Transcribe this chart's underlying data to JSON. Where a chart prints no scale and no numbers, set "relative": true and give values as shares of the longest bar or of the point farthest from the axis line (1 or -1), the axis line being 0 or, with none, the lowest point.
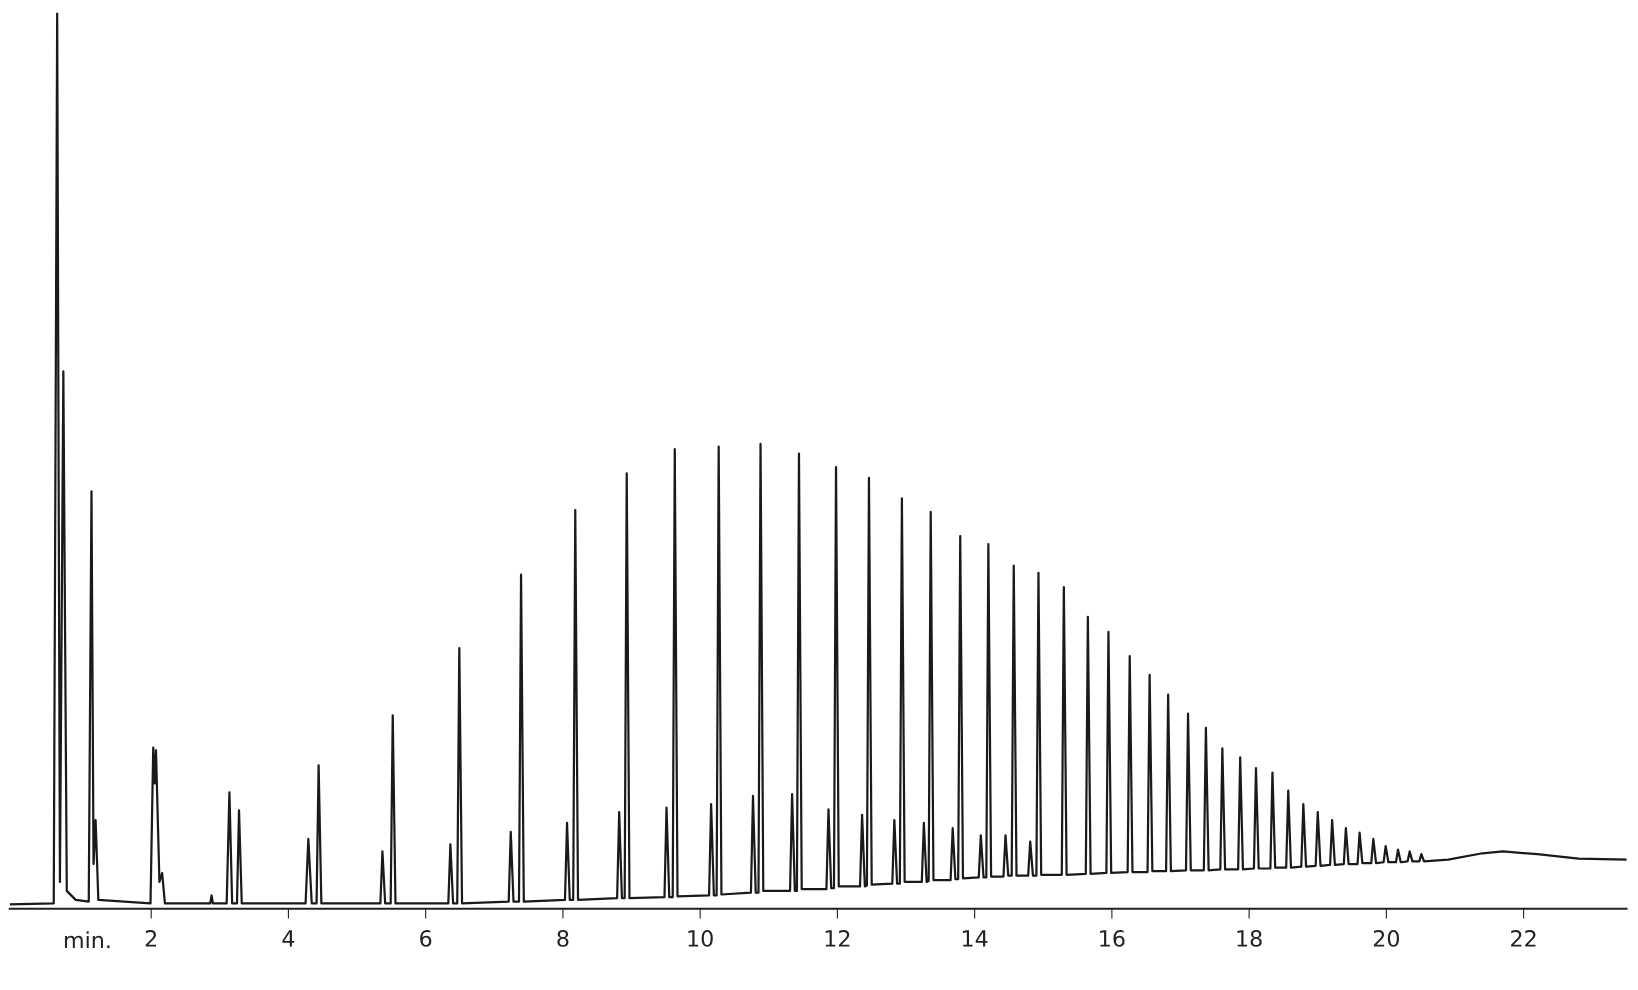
{
  "chart_data": {
    "type": "line",
    "relative": true,
    "xlabel": "min.",
    "xlim": [
      -0.06,
      23.5
    ],
    "xticks": [
      2,
      4,
      6,
      8,
      10,
      12,
      14,
      16,
      18,
      20,
      22
    ],
    "x": [
      -0.06,
      0.58,
      0.63,
      0.67,
      0.72,
      0.77,
      0.9,
      1.09,
      1.13,
      1.16,
      1.19,
      1.23,
      1.99,
      2.03,
      2.05,
      2.07,
      2.12,
      2.16,
      2.2,
      2.86,
      2.88,
      2.9,
      3.1,
      3.14,
      3.18,
      3.25,
      3.28,
      3.32,
      4.25,
      4.29,
      4.34,
      4.41,
      4.44,
      4.48,
      5.34,
      5.37,
      5.41,
      5.49,
      5.52,
      5.56,
      6.33,
      6.36,
      6.4,
      6.46,
      6.49,
      6.53,
      7.21,
      7.24,
      7.28,
      7.36,
      7.39,
      7.43,
      8.03,
      8.06,
      8.1,
      8.15,
      8.18,
      8.22,
      8.79,
      8.82,
      8.86,
      8.9,
      8.93,
      8.97,
      9.48,
      9.51,
      9.55,
      9.6,
      9.63,
      9.67,
      10.13,
      10.16,
      10.2,
      10.24,
      10.27,
      10.31,
      10.74,
      10.77,
      10.81,
      10.85,
      10.88,
      10.92,
      11.31,
      11.34,
      11.38,
      11.41,
      11.44,
      11.48,
      11.84,
      11.87,
      11.91,
      11.95,
      11.98,
      12.02,
      12.33,
      12.36,
      12.4,
      12.43,
      12.46,
      12.5,
      12.8,
      12.83,
      12.87,
      12.91,
      12.94,
      12.98,
      13.23,
      13.26,
      13.3,
      13.33,
      13.36,
      13.4,
      13.65,
      13.68,
      13.72,
      13.76,
      13.79,
      13.83,
      14.06,
      14.09,
      14.13,
      14.17,
      14.2,
      14.24,
      14.42,
      14.45,
      14.49,
      14.54,
      14.57,
      14.61,
      14.78,
      14.81,
      14.85,
      14.9,
      14.93,
      14.97,
      15.27,
      15.3,
      15.34,
      15.62,
      15.65,
      15.69,
      15.92,
      15.95,
      15.99,
      16.23,
      16.26,
      16.3,
      16.52,
      16.55,
      16.59,
      16.79,
      16.82,
      16.86,
      17.08,
      17.11,
      17.15,
      17.34,
      17.37,
      17.41,
      17.58,
      17.61,
      17.65,
      17.84,
      17.87,
      17.91,
      18.07,
      18.1,
      18.14,
      18.31,
      18.34,
      18.38,
      18.54,
      18.57,
      18.61,
      18.76,
      18.79,
      18.83,
      18.97,
      19.0,
      19.04,
      19.18,
      19.21,
      19.25,
      19.38,
      19.41,
      19.45,
      19.58,
      19.61,
      19.65,
      19.78,
      19.81,
      19.85,
      19.96,
      19.99,
      20.03,
      20.14,
      20.17,
      20.21,
      20.31,
      20.34,
      20.38,
      20.48,
      20.51,
      20.55,
      20.9,
      21.4,
      21.7,
      22.2,
      22.8,
      23.5
    ],
    "series": [
      {
        "color": "#1a1a1a",
        "values": [
          0.005,
          0.006,
          1.0,
          0.03,
          0.6,
          0.02,
          0.01,
          0.008,
          0.466,
          0.05,
          0.099,
          0.01,
          0.006,
          0.18,
          0.14,
          0.177,
          0.03,
          0.04,
          0.006,
          0.006,
          0.015,
          0.006,
          0.006,
          0.13,
          0.006,
          0.006,
          0.11,
          0.006,
          0.006,
          0.078,
          0.006,
          0.006,
          0.16,
          0.006,
          0.006,
          0.064,
          0.006,
          0.006,
          0.216,
          0.006,
          0.006,
          0.072,
          0.006,
          0.006,
          0.291,
          0.006,
          0.008,
          0.086,
          0.008,
          0.008,
          0.373,
          0.008,
          0.01,
          0.096,
          0.01,
          0.01,
          0.445,
          0.01,
          0.012,
          0.108,
          0.012,
          0.012,
          0.486,
          0.012,
          0.013,
          0.113,
          0.013,
          0.013,
          0.513,
          0.014,
          0.015,
          0.117,
          0.015,
          0.015,
          0.516,
          0.016,
          0.018,
          0.126,
          0.018,
          0.018,
          0.519,
          0.02,
          0.02,
          0.128,
          0.02,
          0.02,
          0.508,
          0.022,
          0.022,
          0.111,
          0.023,
          0.023,
          0.493,
          0.025,
          0.025,
          0.105,
          0.025,
          0.026,
          0.481,
          0.027,
          0.028,
          0.099,
          0.028,
          0.028,
          0.458,
          0.03,
          0.03,
          0.096,
          0.03,
          0.031,
          0.443,
          0.032,
          0.032,
          0.09,
          0.033,
          0.033,
          0.416,
          0.034,
          0.035,
          0.082,
          0.035,
          0.035,
          0.407,
          0.036,
          0.036,
          0.082,
          0.037,
          0.037,
          0.383,
          0.037,
          0.037,
          0.075,
          0.037,
          0.037,
          0.375,
          0.038,
          0.038,
          0.359,
          0.038,
          0.039,
          0.326,
          0.039,
          0.04,
          0.309,
          0.04,
          0.041,
          0.282,
          0.041,
          0.041,
          0.261,
          0.042,
          0.042,
          0.239,
          0.042,
          0.043,
          0.218,
          0.043,
          0.043,
          0.202,
          0.043,
          0.044,
          0.179,
          0.044,
          0.044,
          0.169,
          0.044,
          0.045,
          0.157,
          0.045,
          0.045,
          0.152,
          0.046,
          0.046,
          0.132,
          0.046,
          0.047,
          0.117,
          0.047,
          0.048,
          0.108,
          0.048,
          0.049,
          0.099,
          0.049,
          0.05,
          0.09,
          0.05,
          0.05,
          0.085,
          0.051,
          0.051,
          0.078,
          0.051,
          0.052,
          0.07,
          0.052,
          0.052,
          0.066,
          0.052,
          0.053,
          0.064,
          0.053,
          0.053,
          0.061,
          0.053,
          0.055,
          0.062,
          0.064,
          0.061,
          0.056,
          0.055
        ]
      }
    ]
  }
}
